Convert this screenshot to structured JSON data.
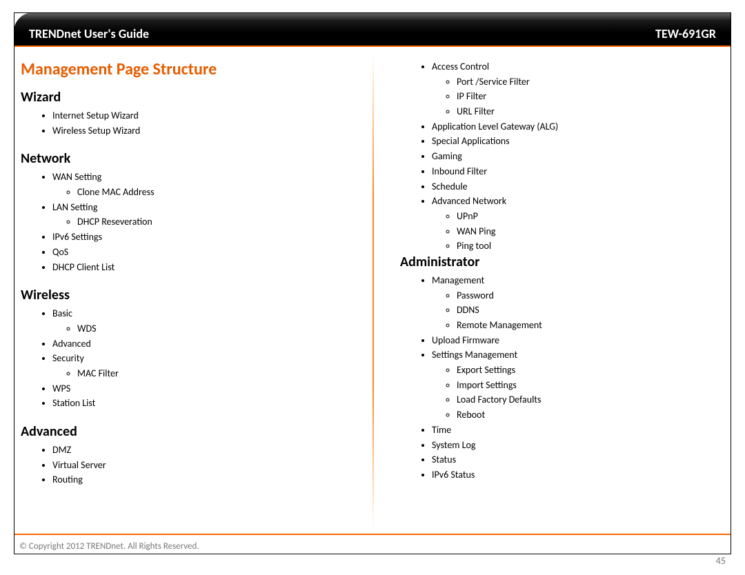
{
  "header": {
    "left": "TRENDnet User's Guide",
    "right": "TEW-691GR"
  },
  "title": "Management Page Structure",
  "left_sections": [
    {
      "heading": "Wizard",
      "items": [
        {
          "label": "Internet Setup Wizard"
        },
        {
          "label": "Wireless Setup Wizard"
        }
      ]
    },
    {
      "heading": "Network",
      "items": [
        {
          "label": "WAN Setting",
          "sub": [
            {
              "label": "Clone MAC Address"
            }
          ]
        },
        {
          "label": "LAN Setting",
          "sub": [
            {
              "label": "DHCP Reseveration"
            }
          ]
        },
        {
          "label": "IPv6 Settings"
        },
        {
          "label": "QoS"
        },
        {
          "label": "DHCP Client List"
        }
      ]
    },
    {
      "heading": "Wireless",
      "items": [
        {
          "label": "Basic",
          "sub": [
            {
              "label": "WDS"
            }
          ]
        },
        {
          "label": "Advanced"
        },
        {
          "label": "Security",
          "sub": [
            {
              "label": "MAC Filter"
            }
          ]
        },
        {
          "label": "WPS"
        },
        {
          "label": "Station List"
        }
      ]
    },
    {
      "heading": "Advanced",
      "items": [
        {
          "label": "DMZ"
        },
        {
          "label": "Virtual Server"
        },
        {
          "label": "Routing"
        }
      ]
    }
  ],
  "right_top_items": [
    {
      "label": "Access Control",
      "sub": [
        {
          "label": "Port /Service Filter"
        },
        {
          "label": "IP Filter"
        },
        {
          "label": "URL Filter"
        }
      ]
    },
    {
      "label": "Application Level Gateway (ALG)"
    },
    {
      "label": "Special Applications"
    },
    {
      "label": "Gaming"
    },
    {
      "label": "Inbound Filter"
    },
    {
      "label": "Schedule"
    },
    {
      "label": "Advanced Network",
      "sub": [
        {
          "label": "UPnP"
        },
        {
          "label": "WAN Ping"
        },
        {
          "label": "Ping tool"
        }
      ]
    }
  ],
  "right_sections": [
    {
      "heading": "Administrator",
      "items": [
        {
          "label": "Management",
          "sub": [
            {
              "label": "Password"
            },
            {
              "label": "DDNS"
            },
            {
              "label": "Remote Management"
            }
          ]
        },
        {
          "label": "Upload Firmware"
        },
        {
          "label": "Settings Management",
          "sub": [
            {
              "label": "Export Settings"
            },
            {
              "label": "Import Settings"
            },
            {
              "label": "Load Factory Defaults"
            },
            {
              "label": "Reboot"
            }
          ]
        },
        {
          "label": "Time"
        },
        {
          "label": "System Log"
        },
        {
          "label": "Status"
        },
        {
          "label": "IPv6 Status"
        }
      ]
    }
  ],
  "footer": {
    "copyright": "© Copyright 2012 TRENDnet. All Rights Reserved.",
    "page": "45"
  },
  "colors": {
    "accent": "#ff6600",
    "title": "#e65c00",
    "text": "#000000",
    "muted": "#777777"
  }
}
